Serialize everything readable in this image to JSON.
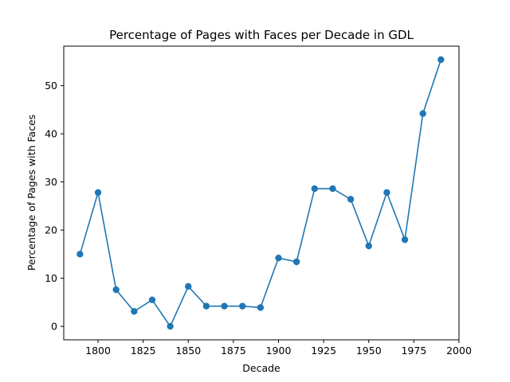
{
  "chart_data": {
    "type": "line",
    "title": "Percentage of Pages with Faces per Decade in GDL",
    "xlabel": "Decade",
    "ylabel": "Percentage of Pages with Faces",
    "xlim": [
      1781,
      2000
    ],
    "ylim": [
      -2.8,
      58.2
    ],
    "xticks": [
      1800,
      1825,
      1850,
      1875,
      1900,
      1925,
      1950,
      1975,
      2000
    ],
    "yticks": [
      0,
      10,
      20,
      30,
      40,
      50
    ],
    "grid": false,
    "legend": "none",
    "series": [
      {
        "color": "#1f77b4",
        "x": [
          1790,
          1800,
          1810,
          1820,
          1830,
          1840,
          1850,
          1860,
          1870,
          1880,
          1890,
          1900,
          1910,
          1920,
          1930,
          1940,
          1950,
          1960,
          1970,
          1980,
          1990
        ],
        "y": [
          15.0,
          27.8,
          7.6,
          3.1,
          5.5,
          0.0,
          8.3,
          4.2,
          4.2,
          4.2,
          3.9,
          14.2,
          13.4,
          28.6,
          28.6,
          26.4,
          16.7,
          27.8,
          18.0,
          44.2,
          55.4
        ]
      }
    ]
  }
}
